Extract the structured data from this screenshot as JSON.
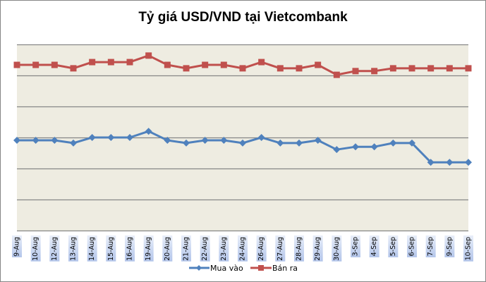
{
  "chart_data": {
    "type": "line",
    "title": "Tỷ giá USD/VND tại Vietcombank",
    "xlabel": "",
    "ylabel": "",
    "y_axis_labels_visible": false,
    "y_units": "relative (gridline spacing = 1)",
    "ylim": [
      0,
      6
    ],
    "grid": true,
    "legend_position": "bottom",
    "categories": [
      "9-Aug",
      "10-Aug",
      "12-Aug",
      "13-Aug",
      "14-Aug",
      "15-Aug",
      "16-Aug",
      "19-Aug",
      "20-Aug",
      "21-Aug",
      "22-Aug",
      "23-Aug",
      "24-Aug",
      "26-Aug",
      "27-Aug",
      "28-Aug",
      "29-Aug",
      "30-Aug",
      "3-Sep",
      "4-Sep",
      "5-Sep",
      "6-Sep",
      "7-Sep",
      "9-Sep",
      "10-Sep"
    ],
    "series": [
      {
        "name": "Mua vào",
        "color": "#4F81BD",
        "marker": "diamond",
        "values": [
          2.91,
          2.91,
          2.91,
          2.82,
          3.0,
          3.0,
          3.0,
          3.2,
          2.91,
          2.82,
          2.91,
          2.91,
          2.82,
          3.0,
          2.82,
          2.82,
          2.91,
          2.61,
          2.7,
          2.7,
          2.82,
          2.82,
          2.2,
          2.2,
          2.2
        ]
      },
      {
        "name": "Bán ra",
        "color": "#C0504D",
        "marker": "square",
        "values": [
          5.34,
          5.34,
          5.34,
          5.23,
          5.43,
          5.43,
          5.43,
          5.64,
          5.34,
          5.23,
          5.34,
          5.34,
          5.23,
          5.43,
          5.23,
          5.23,
          5.34,
          5.02,
          5.14,
          5.14,
          5.23,
          5.23,
          5.23,
          5.23,
          5.23
        ]
      }
    ]
  },
  "header": {
    "title": "Tỷ giá USD/VND tại Vietcombank"
  },
  "legend": [
    {
      "label": "Mua vào",
      "color": "#4F81BD",
      "marker": "diamond"
    },
    {
      "label": "Bán ra",
      "color": "#C0504D",
      "marker": "square"
    }
  ],
  "style": {
    "plot_bg": "#EEECE1",
    "grid_color": "#868686",
    "label_bg_top": "#B9C9EA",
    "label_bg_bottom": "#E6ECF8"
  }
}
